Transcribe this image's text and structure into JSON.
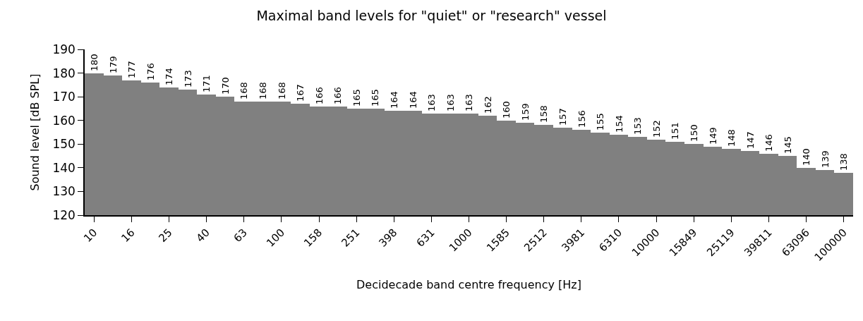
{
  "chart_data": {
    "type": "bar",
    "title": "Maximal band levels for \"quiet\" or \"research\" vessel",
    "xlabel": "Decidecade band centre frequency [Hz]",
    "ylabel": "Sound level [dB SPL]",
    "categories": [
      "10",
      null,
      "16",
      null,
      "25",
      null,
      "40",
      null,
      "63",
      null,
      "100",
      null,
      "158",
      null,
      "251",
      null,
      "398",
      null,
      "631",
      null,
      "1000",
      null,
      "1585",
      null,
      "2512",
      null,
      "3981",
      null,
      "6310",
      null,
      "10000",
      null,
      "15849",
      null,
      "25119",
      null,
      "39811",
      null,
      "63096",
      null,
      "100000"
    ],
    "values": [
      180,
      179,
      177,
      176,
      174,
      173,
      171,
      170,
      168,
      168,
      168,
      167,
      166,
      166,
      165,
      165,
      164,
      164,
      163,
      163,
      163,
      162,
      160,
      159,
      158,
      157,
      156,
      155,
      154,
      153,
      152,
      151,
      150,
      149,
      148,
      147,
      146,
      145,
      140,
      139,
      138
    ],
    "color": "#808080",
    "ylim": [
      120,
      190
    ],
    "yticks": [
      120,
      130,
      140,
      150,
      160,
      170,
      180,
      190
    ],
    "grid": false,
    "data_labels": true
  }
}
